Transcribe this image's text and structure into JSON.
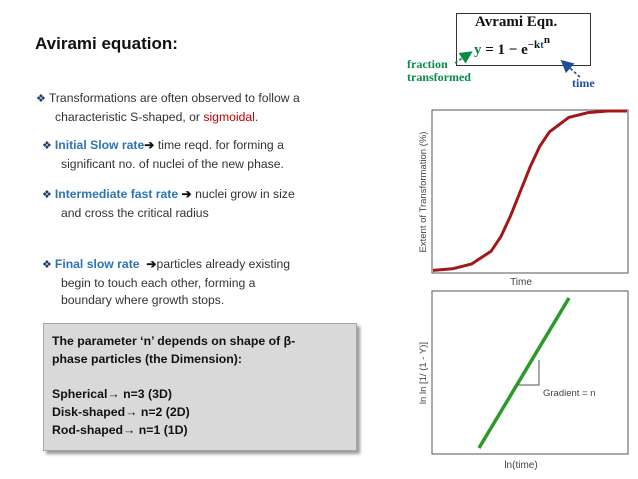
{
  "title": "Avirami equation:",
  "bullets": {
    "b1": {
      "text1": "Transformations are often observed to follow a",
      "text2a": "characteristic S-shaped, or ",
      "text2b": "sigmoidal."
    },
    "b2": {
      "label": "Initial Slow rate",
      "text1": " time reqd. for forming a",
      "text2": "significant no. of nuclei of the new phase."
    },
    "b3": {
      "label": "Intermediate fast rate",
      "text1": " nuclei grow in size",
      "text2": "and cross the critical radius"
    },
    "b4": {
      "label": "Final slow rate",
      "text1": "particles already existing",
      "text2": "begin to touch each other, forming a",
      "text3": "boundary where growth stops."
    }
  },
  "param_box": {
    "line1": "The parameter ‘n’ depends on shape of β-",
    "line2": "phase particles (the Dimension):",
    "line3": "Spherical→ n=3 (3D)",
    "line4": "Disk-shaped→ n=2 (2D)",
    "line5": "Rod-shaped→ n=1 (1D)"
  },
  "equation": {
    "title": "Avrami Eqn.",
    "y": "y",
    "rest": " = 1 − e",
    "exp_minus": "−k",
    "exp_t": "t",
    "exp_n": "n",
    "label_fraction_1": "fraction",
    "label_fraction_2": "transformed",
    "label_time": "time"
  },
  "chart_data": [
    {
      "type": "line",
      "x": [
        0,
        0.1,
        0.2,
        0.3,
        0.35,
        0.4,
        0.45,
        0.5,
        0.55,
        0.6,
        0.7,
        0.8,
        0.9,
        1.0
      ],
      "y": [
        0.01,
        0.02,
        0.05,
        0.13,
        0.22,
        0.35,
        0.5,
        0.65,
        0.78,
        0.87,
        0.96,
        0.99,
        1.0,
        1.0
      ],
      "xlabel": "Time",
      "ylabel": "Extent of Transformation (%)",
      "series": [
        {
          "color": "#a01818"
        }
      ]
    },
    {
      "type": "line",
      "x": [
        0,
        1
      ],
      "y": [
        0,
        1
      ],
      "xlabel": "ln(time)",
      "ylabel": "ln ln [1/ (1 - Y)]",
      "annotation": "Gradient = n",
      "series": [
        {
          "color": "#2b9a2b"
        }
      ]
    }
  ]
}
